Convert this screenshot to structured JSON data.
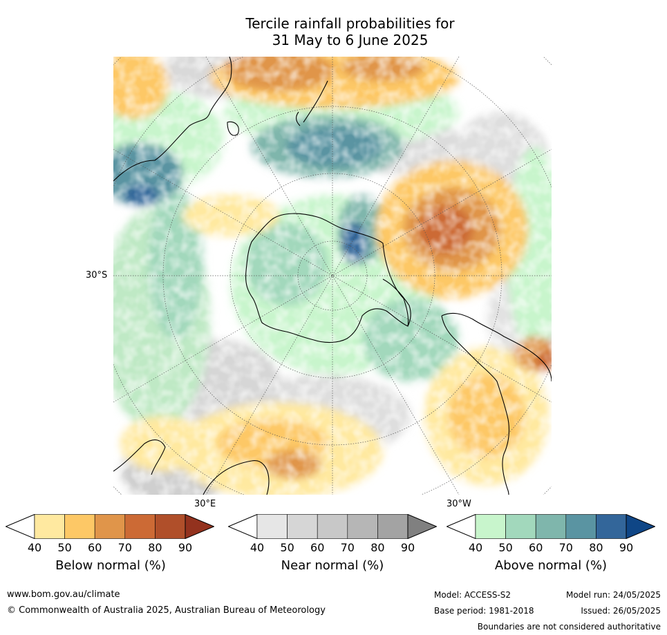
{
  "title": {
    "line1": "Tercile rainfall probabilities for",
    "line2": "31 May to 6 June 2025"
  },
  "map": {
    "lat_label": "30°S",
    "lon_label_east": "30°E",
    "lon_label_west": "30°W"
  },
  "colorbars": [
    {
      "name": "below",
      "label": "Below normal (%)",
      "ticks": [
        "40",
        "50",
        "60",
        "70",
        "80",
        "90"
      ],
      "colors": [
        "#ffffff",
        "#ffe9a0",
        "#fdc866",
        "#e0954a",
        "#cc6a35",
        "#b04f2a",
        "#93321e"
      ]
    },
    {
      "name": "near",
      "label": "Near normal (%)",
      "ticks": [
        "40",
        "50",
        "60",
        "70",
        "80",
        "90"
      ],
      "colors": [
        "#ffffff",
        "#e6e6e6",
        "#d6d6d6",
        "#c8c8c8",
        "#b6b6b6",
        "#a3a3a3",
        "#808080"
      ]
    },
    {
      "name": "above",
      "label": "Above normal (%)",
      "ticks": [
        "40",
        "50",
        "60",
        "70",
        "80",
        "90"
      ],
      "colors": [
        "#ffffff",
        "#c8f5cc",
        "#a2d8bc",
        "#7fb6ac",
        "#5a94a2",
        "#33669a",
        "#0f4686"
      ]
    }
  ],
  "footer": {
    "website": "www.bom.gov.au/climate",
    "copyright": "© Commonwealth of Australia 2025, Australian Bureau of Meteorology",
    "model": "Model: ACCESS-S2",
    "base_period": "Base period: 1981-2018",
    "model_run": "Model run: 24/05/2025",
    "issued": "Issued: 26/05/2025",
    "disclaimer": "Boundaries are not considered authoritative"
  }
}
